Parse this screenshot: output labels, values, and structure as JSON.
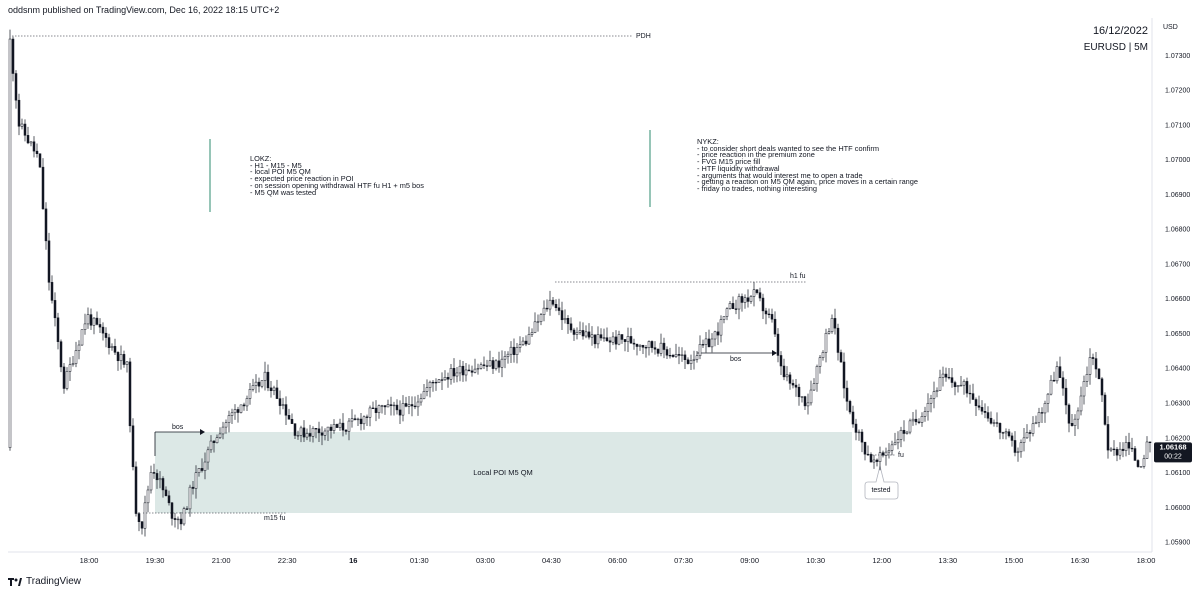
{
  "header": {
    "published": "oddsnm published on TradingView.com, Dec 16, 2022 18:15 UTC+2"
  },
  "symbol_box": {
    "date": "16/12/2022",
    "symbol": "EURUSD | 5M"
  },
  "footer": {
    "brand": "TradingView"
  },
  "colors": {
    "up": "#ffffff",
    "down": "#131722",
    "wick": "#131722",
    "zone": "#dce8e6",
    "price_badge": "#131722",
    "vline": "#2e8b6f"
  },
  "chart_data": {
    "type": "candlestick",
    "symbol": "EURUSD",
    "timeframe": "5M",
    "y_axis": {
      "unit": "USD",
      "min": 1.0587,
      "max": 1.074,
      "ticks": [
        "1.07300",
        "1.07200",
        "1.07100",
        "1.07000",
        "1.06900",
        "1.06800",
        "1.06700",
        "1.06600",
        "1.06500",
        "1.06400",
        "1.06300",
        "1.06200",
        "1.06100",
        "1.06000",
        "1.05900"
      ]
    },
    "x_axis": {
      "ticks": [
        "18:00",
        "19:30",
        "21:00",
        "22:30",
        "16",
        "01:30",
        "03:00",
        "04:30",
        "06:00",
        "07:30",
        "09:00",
        "10:30",
        "12:00",
        "13:30",
        "15:00",
        "16:30",
        "18:00"
      ]
    },
    "last_price": {
      "value": "1.06168",
      "countdown": "00:22"
    },
    "key_points": [
      {
        "x": 13,
        "y": 1.0734
      },
      {
        "x": 22,
        "y": 1.071
      },
      {
        "x": 42,
        "y": 1.07
      },
      {
        "x": 52,
        "y": 1.0665
      },
      {
        "x": 67,
        "y": 1.0635
      },
      {
        "x": 90,
        "y": 1.0655
      },
      {
        "x": 110,
        "y": 1.0648
      },
      {
        "x": 130,
        "y": 1.064
      },
      {
        "x": 138,
        "y": 1.06
      },
      {
        "x": 145,
        "y": 1.0595
      },
      {
        "x": 155,
        "y": 1.0612
      },
      {
        "x": 163,
        "y": 1.0607
      },
      {
        "x": 175,
        "y": 1.0598
      },
      {
        "x": 185,
        "y": 1.0596
      },
      {
        "x": 195,
        "y": 1.0606
      },
      {
        "x": 205,
        "y": 1.0612
      },
      {
        "x": 222,
        "y": 1.0622
      },
      {
        "x": 245,
        "y": 1.063
      },
      {
        "x": 268,
        "y": 1.0637
      },
      {
        "x": 285,
        "y": 1.063
      },
      {
        "x": 300,
        "y": 1.0621
      },
      {
        "x": 320,
        "y": 1.0622
      },
      {
        "x": 350,
        "y": 1.0623
      },
      {
        "x": 380,
        "y": 1.0628
      },
      {
        "x": 410,
        "y": 1.0628
      },
      {
        "x": 440,
        "y": 1.0637
      },
      {
        "x": 470,
        "y": 1.064
      },
      {
        "x": 500,
        "y": 1.0641
      },
      {
        "x": 530,
        "y": 1.0648
      },
      {
        "x": 555,
        "y": 1.066
      },
      {
        "x": 570,
        "y": 1.0652
      },
      {
        "x": 600,
        "y": 1.0648
      },
      {
        "x": 630,
        "y": 1.0648
      },
      {
        "x": 660,
        "y": 1.0646
      },
      {
        "x": 690,
        "y": 1.0642
      },
      {
        "x": 715,
        "y": 1.0648
      },
      {
        "x": 735,
        "y": 1.0658
      },
      {
        "x": 758,
        "y": 1.0661
      },
      {
        "x": 775,
        "y": 1.0653
      },
      {
        "x": 785,
        "y": 1.0638
      },
      {
        "x": 810,
        "y": 1.063
      },
      {
        "x": 835,
        "y": 1.0655
      },
      {
        "x": 850,
        "y": 1.063
      },
      {
        "x": 865,
        "y": 1.0618
      },
      {
        "x": 878,
        "y": 1.0612
      },
      {
        "x": 900,
        "y": 1.062
      },
      {
        "x": 920,
        "y": 1.0625
      },
      {
        "x": 945,
        "y": 1.0637
      },
      {
        "x": 970,
        "y": 1.0634
      },
      {
        "x": 995,
        "y": 1.0625
      },
      {
        "x": 1020,
        "y": 1.0616
      },
      {
        "x": 1045,
        "y": 1.0628
      },
      {
        "x": 1060,
        "y": 1.064
      },
      {
        "x": 1075,
        "y": 1.0622
      },
      {
        "x": 1095,
        "y": 1.0645
      },
      {
        "x": 1105,
        "y": 1.0632
      },
      {
        "x": 1112,
        "y": 1.0615
      },
      {
        "x": 1130,
        "y": 1.0618
      },
      {
        "x": 1142,
        "y": 1.0612
      },
      {
        "x": 1150,
        "y": 1.0617
      }
    ]
  },
  "annotations": {
    "pdh": "PDH",
    "h1_fu": "h1 fu",
    "bos_left": "bos",
    "bos_right": "bos",
    "m15_fu": "m15 fu",
    "fu": "fu",
    "tested": "tested",
    "zone_label": "Local POI M5 QM",
    "lokz": "LOKZ:\n- H1 - M15 - M5\n- local POI M5 QM\n- expected price reaction in POI\n- on session opening withdrawal HTF fu H1 + m5 bos\n- M5 QM was tested",
    "nykz": "NYKZ:\n- to consider short deals wanted to see the HTF confirm\n- price reaction in the premium zone\n- FVG M15 price fill\n- HTF liquidity withdrawal\n- arguments that would interest me to open a trade\n- getting a reaction on M5 QM again, price moves in a certain range\n- friday no trades, nothing interesting"
  }
}
